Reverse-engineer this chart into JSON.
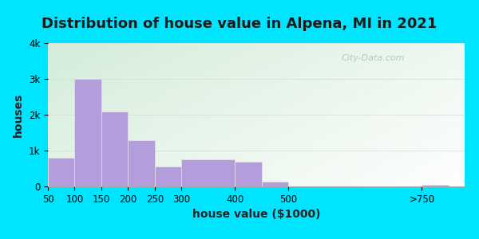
{
  "title": "Distribution of house value in Alpena, MI in 2021",
  "xlabel": "house value ($1000)",
  "ylabel": "houses",
  "bar_lefts": [
    50,
    100,
    150,
    200,
    250,
    300,
    400,
    450,
    750
  ],
  "bar_widths": [
    50,
    50,
    50,
    50,
    50,
    100,
    50,
    50,
    50
  ],
  "bar_values": [
    800,
    3000,
    2100,
    1300,
    550,
    760,
    700,
    130,
    50
  ],
  "xtick_positions": [
    50,
    100,
    150,
    200,
    250,
    300,
    400,
    500,
    750
  ],
  "xtick_labels": [
    "50",
    "100",
    "150",
    "200",
    "250",
    "300",
    "400",
    "500",
    ">750"
  ],
  "bar_color": "#b39ddb",
  "bar_edge_color": "#e8e0f0",
  "yticks": [
    0,
    1000,
    2000,
    3000,
    4000
  ],
  "ytick_labels": [
    "0",
    "1k",
    "2k",
    "3k",
    "4k"
  ],
  "ylim": [
    0,
    4000
  ],
  "xlim": [
    50,
    830
  ],
  "bg_outer": "#00e5ff",
  "watermark": "City-Data.com",
  "title_fontsize": 13,
  "axis_label_fontsize": 10,
  "tick_fontsize": 8.5
}
